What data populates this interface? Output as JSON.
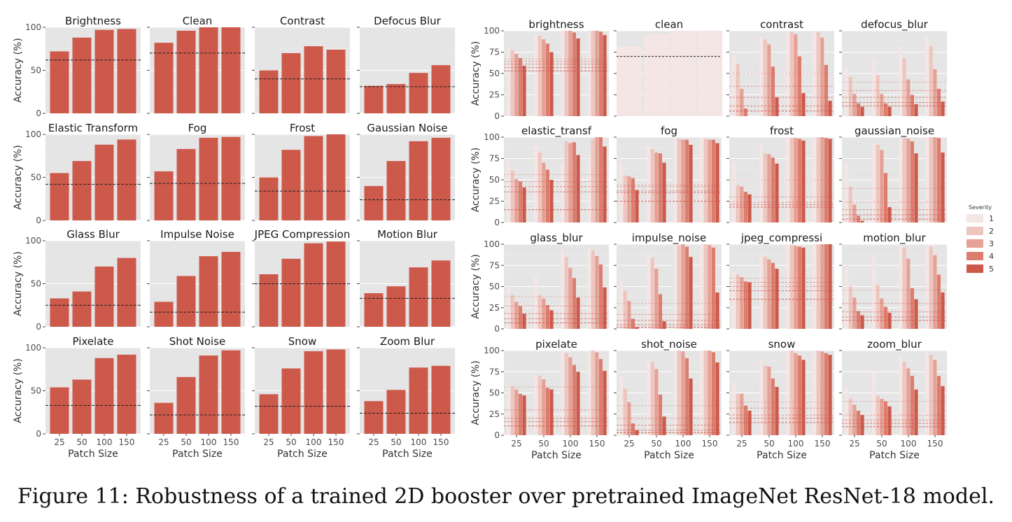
{
  "caption": "Figure 11: Robustness of a trained 2D booster over pretrained ImageNet ResNet-18 model.",
  "colors": {
    "bar_left": "#cd594b",
    "panel_bg": "#e5e5e5",
    "grid": "#ffffff",
    "baseline": "#222222",
    "severity": [
      "#f4e6e4",
      "#efc5bf",
      "#e5a196",
      "#dc7d6e",
      "#cd594b"
    ]
  },
  "chart_data": [
    {
      "type": "bar",
      "title": "",
      "xlabel": "Patch Size",
      "ylabel": "Accuracy (%)",
      "categories": [
        "25",
        "50",
        "100",
        "150"
      ],
      "ylim": [
        0,
        100
      ],
      "yticks": [
        0,
        50,
        100
      ],
      "grid": true,
      "baseline_style": "dashed",
      "panels": [
        {
          "title": "Brightness",
          "values": [
            72,
            88,
            97,
            98
          ],
          "baseline": 62
        },
        {
          "title": "Clean",
          "values": [
            82,
            96,
            100,
            100
          ],
          "baseline": 70
        },
        {
          "title": "Contrast",
          "values": [
            50,
            70,
            78,
            74
          ],
          "baseline": 40
        },
        {
          "title": "Defocus Blur",
          "values": [
            32,
            34,
            47,
            56
          ],
          "baseline": 31
        },
        {
          "title": "Elastic Transform",
          "values": [
            55,
            69,
            88,
            94
          ],
          "baseline": 42
        },
        {
          "title": "Fog",
          "values": [
            57,
            83,
            96,
            97
          ],
          "baseline": 43
        },
        {
          "title": "Frost",
          "values": [
            50,
            82,
            98,
            100
          ],
          "baseline": 34
        },
        {
          "title": "Gaussian Noise",
          "values": [
            40,
            69,
            92,
            96
          ],
          "baseline": 24
        },
        {
          "title": "Glass Blur",
          "values": [
            33,
            41,
            70,
            80
          ],
          "baseline": 25
        },
        {
          "title": "Impulse Noise",
          "values": [
            29,
            59,
            82,
            87
          ],
          "baseline": 17
        },
        {
          "title": "JPEG Compression",
          "values": [
            61,
            79,
            97,
            99
          ],
          "baseline": 50
        },
        {
          "title": "Motion Blur",
          "values": [
            39,
            47,
            69,
            77
          ],
          "baseline": 33
        },
        {
          "title": "Pixelate",
          "values": [
            54,
            63,
            88,
            92
          ],
          "baseline": 33
        },
        {
          "title": "Shot Noise",
          "values": [
            36,
            66,
            91,
            97
          ],
          "baseline": 22
        },
        {
          "title": "Snow",
          "values": [
            46,
            76,
            96,
            98
          ],
          "baseline": 32
        },
        {
          "title": "Zoom Blur",
          "values": [
            38,
            51,
            77,
            79
          ],
          "baseline": 24
        }
      ]
    },
    {
      "type": "bar",
      "title": "",
      "xlabel": "Patch Size",
      "ylabel": "Accuracy (%)",
      "categories": [
        "25",
        "50",
        "100",
        "150"
      ],
      "ylim": [
        0,
        100
      ],
      "yticks": [
        0,
        25,
        50,
        75,
        100
      ],
      "grid": true,
      "legend_title": "Severity",
      "legend_labels": [
        "1",
        "2",
        "3",
        "4",
        "5"
      ],
      "legend_position": "right",
      "panels": [
        {
          "title": "brightness",
          "values": [
            [
              79,
              77,
              73,
              68,
              59
            ],
            [
              95,
              94,
              90,
              85,
              75
            ],
            [
              100,
              100,
              100,
              98,
              91
            ],
            [
              100,
              100,
              100,
              99,
              95
            ]
          ],
          "baselines": [
            67,
            64,
            61,
            57,
            53
          ]
        },
        {
          "title": "clean",
          "values": [
            [
              82
            ],
            [
              96
            ],
            [
              100
            ],
            [
              100
            ]
          ],
          "baselines": [
            70
          ]
        },
        {
          "title": "contrast",
          "values": [
            [
              72,
              61,
              32,
              9,
              null
            ],
            [
              92,
              90,
              84,
              58,
              22
            ],
            [
              100,
              99,
              96,
              70,
              27
            ],
            [
              100,
              99,
              92,
              60,
              18
            ]
          ],
          "baselines": [
            50,
            35,
            22,
            12,
            6
          ]
        },
        {
          "title": "defocus_blur",
          "values": [
            [
              58,
              46,
              26,
              15,
              11
            ],
            [
              68,
              48,
              26,
              15,
              11
            ],
            [
              82,
              68,
              43,
              25,
              14
            ],
            [
              93,
              82,
              55,
              32,
              17
            ]
          ],
          "baselines": [
            40,
            30,
            22,
            16,
            12
          ]
        },
        {
          "title": "elastic_transf",
          "values": [
            [
              72,
              61,
              51,
              48,
              41
            ],
            [
              90,
              82,
              70,
              62,
              50
            ],
            [
              70,
              95,
              93,
              94,
              79
            ],
            [
              80,
              98,
              100,
              100,
              89
            ]
          ],
          "baselines": [
            56,
            48,
            42,
            36,
            15
          ]
        },
        {
          "title": "fog",
          "values": [
            [
              71,
              55,
              54,
              52,
              38
            ],
            [
              90,
              86,
              82,
              81,
              70
            ],
            [
              100,
              98,
              97,
              97,
              91
            ],
            [
              99,
              98,
              97,
              97,
              93
            ]
          ],
          "baselines": [
            44,
            42,
            37,
            35,
            25
          ]
        },
        {
          "title": "frost",
          "values": [
            [
              71,
              44,
              42,
              36,
              33
            ],
            [
              92,
              81,
              80,
              76,
              69
            ],
            [
              100,
              99,
              99,
              98,
              96
            ],
            [
              100,
              100,
              100,
              99,
              98
            ]
          ],
          "baselines": [
            50,
            30,
            24,
            21,
            18
          ]
        },
        {
          "title": "gaussian_noise",
          "values": [
            [
              70,
              42,
              21,
              8,
              2
            ],
            [
              94,
              91,
              85,
              58,
              18
            ],
            [
              100,
              99,
              98,
              95,
              81
            ],
            [
              100,
              100,
              100,
              99,
              82
            ]
          ],
          "baselines": [
            40,
            24,
            15,
            9,
            4
          ]
        },
        {
          "title": "glass_blur",
          "values": [
            [
              50,
              40,
              32,
              27,
              18
            ],
            [
              62,
              40,
              36,
              28,
              22
            ],
            [
              94,
              85,
              72,
              60,
              37
            ],
            [
              96,
              93,
              86,
              76,
              49
            ]
          ],
          "baselines": [
            38,
            27,
            18,
            12,
            7
          ]
        },
        {
          "title": "impulse_noise",
          "values": [
            [
              56,
              45,
              33,
              12,
              2
            ],
            [
              90,
              84,
              71,
              41,
              9
            ],
            [
              100,
              99,
              100,
              97,
              85
            ],
            [
              100,
              100,
              99,
              96,
              43
            ]
          ],
          "baselines": [
            30,
            17,
            10,
            5,
            2
          ]
        },
        {
          "title": "jpeg_compressi",
          "values": [
            [
              67,
              64,
              61,
              56,
              55
            ],
            [
              87,
              85,
              82,
              78,
              71
            ],
            [
              100,
              99,
              98,
              97,
              96
            ],
            [
              100,
              100,
              100,
              100,
              100
            ]
          ],
          "baselines": [
            60,
            55,
            50,
            45,
            35
          ]
        },
        {
          "title": "motion_blur",
          "values": [
            [
              72,
              50,
              37,
              21,
              16
            ],
            [
              86,
              52,
              36,
              26,
              19
            ],
            [
              99,
              96,
              83,
              48,
              35
            ],
            [
              99,
              97,
              87,
              64,
              43
            ]
          ],
          "baselines": [
            46,
            30,
            20,
            14,
            10
          ]
        },
        {
          "title": "pixelate",
          "values": [
            [
              58,
              57,
              54,
              49,
              47
            ],
            [
              70,
              70,
              66,
              56,
              54
            ],
            [
              100,
              97,
              92,
              83,
              75
            ],
            [
              100,
              100,
              98,
              90,
              76
            ]
          ],
          "baselines": [
            57,
            30,
            20,
            16,
            11
          ]
        },
        {
          "title": "shot_noise",
          "values": [
            [
              69,
              55,
              39,
              14,
              6
            ],
            [
              91,
              87,
              78,
              48,
              22
            ],
            [
              100,
              100,
              99,
              91,
              67
            ],
            [
              100,
              100,
              100,
              98,
              86
            ]
          ],
          "baselines": [
            35,
            20,
            12,
            6,
            3
          ]
        },
        {
          "title": "snow",
          "values": [
            [
              63,
              49,
              49,
              35,
              29
            ],
            [
              90,
              82,
              81,
              67,
              57
            ],
            [
              100,
              100,
              97,
              94,
              89
            ],
            [
              100,
              100,
              99,
              97,
              95
            ]
          ],
          "baselines": [
            39,
            32,
            24,
            20,
            15
          ]
        },
        {
          "title": "zoom_blur",
          "values": [
            [
              56,
              43,
              36,
              29,
              24
            ],
            [
              75,
              47,
              43,
              40,
              34
            ],
            [
              92,
              87,
              79,
              70,
              54
            ],
            [
              97,
              95,
              89,
              70,
              58
            ]
          ],
          "baselines": [
            40,
            24,
            18,
            14,
            10
          ]
        }
      ]
    }
  ]
}
